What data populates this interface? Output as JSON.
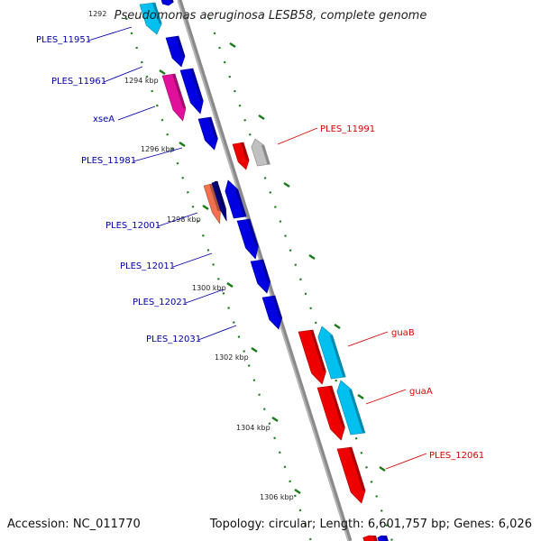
{
  "title": "Pseudomonas aeruginosa LESB58, complete genome",
  "accession": "Accession: NC_011770",
  "topology": "Topology: circular; Length: 6,601,757 bp; Genes: 6,026",
  "ticks": {
    "top_partial": "1292",
    "labels": [
      "1294 kbp",
      "1296 kbp",
      "1298 kbp",
      "1300 kbp",
      "1302 kbp",
      "1304 kbp",
      "1306 kbp"
    ]
  },
  "gene_labels_left": [
    "PLES_11951",
    "PLES_11961",
    "xseA",
    "PLES_11981",
    "PLES_12001",
    "PLES_12011",
    "PLES_12021",
    "PLES_12031"
  ],
  "gene_labels_right": [
    "PLES_11991",
    "guaB",
    "guaA",
    "PLES_12061"
  ],
  "colors": {
    "backbone": "#8a8a8a",
    "tick_green": "#1a7a1a",
    "blue_gene": "#0000e0",
    "red_gene": "#ee0000",
    "cyan_gene": "#00c0f0",
    "magenta_gene": "#e0109a",
    "gray_gene": "#c0c0c0",
    "salmon_gene": "#f07050",
    "navy_gene": "#000080",
    "label_blue": "#0000aa",
    "label_red": "#dd0000"
  }
}
